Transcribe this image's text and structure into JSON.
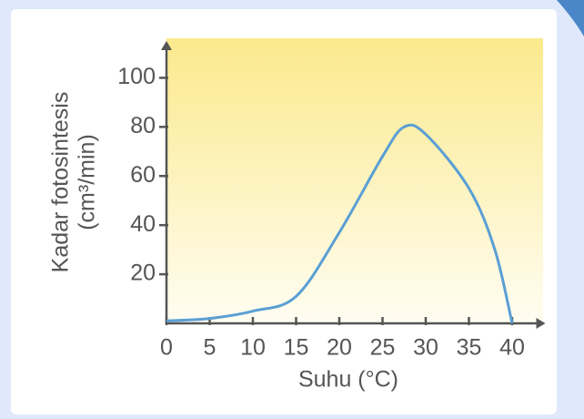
{
  "chart_data": {
    "type": "line",
    "x_label": "Suhu (°C)",
    "y_label": [
      "Kadar fotosintesis",
      "(cm³/min)"
    ],
    "x": [
      0,
      5,
      10,
      15,
      20,
      25,
      27.5,
      30,
      35,
      38,
      40
    ],
    "series": [
      {
        "color": "#5a9fd4",
        "values": [
          1,
          2,
          5,
          11,
          37,
          68,
          80,
          77,
          55,
          30,
          0
        ]
      }
    ],
    "xlim": [
      0,
      43
    ],
    "ylim": [
      0,
      115
    ],
    "xticks": [
      0,
      5,
      10,
      15,
      20,
      25,
      30,
      35,
      40
    ],
    "yticks": [
      20,
      40,
      60,
      80,
      100
    ]
  }
}
